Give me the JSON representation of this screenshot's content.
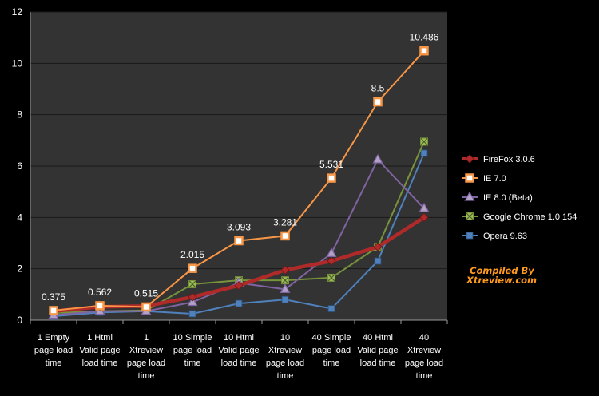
{
  "chart_data": {
    "type": "line",
    "categories": [
      [
        "1 Empty",
        "page load",
        "time"
      ],
      [
        "1 Html",
        "Valid page",
        "load time"
      ],
      [
        "1",
        "Xtreview",
        "page load",
        "time"
      ],
      [
        "10 Simple",
        "page load",
        "time"
      ],
      [
        "10 Html",
        "Valid page",
        "load time"
      ],
      [
        "10",
        "Xtreview",
        "page load",
        "time"
      ],
      [
        "40 Simple",
        "page load",
        "time"
      ],
      [
        "40 Html",
        "Valid page",
        "load time"
      ],
      [
        "40",
        "Xtreview",
        "page load",
        "time"
      ]
    ],
    "ylim": [
      0,
      12
    ],
    "yticks": [
      0,
      2,
      4,
      6,
      8,
      10,
      12
    ],
    "grid": true,
    "legend_position": "right",
    "series": [
      {
        "name": "FireFox 3.0.6",
        "color": "#b02a2a",
        "marker": "diamond",
        "values": [
          0.35,
          0.52,
          0.55,
          0.9,
          1.35,
          1.95,
          2.3,
          2.85,
          4.0
        ]
      },
      {
        "name": "IE 7.0",
        "color": "#f79646",
        "marker": "square-hollow",
        "values": [
          0.375,
          0.562,
          0.515,
          2.015,
          3.093,
          3.281,
          5.531,
          8.5,
          10.486
        ],
        "labels": [
          "0.375",
          "0.562",
          "0.515",
          "2.015",
          "3.093",
          "3.281",
          "5.531",
          "8.5",
          "10.486"
        ]
      },
      {
        "name": "IE 8.0 (Beta)",
        "color": "#8064a2",
        "marker": "triangle",
        "values": [
          0.2,
          0.35,
          0.35,
          0.7,
          1.45,
          1.2,
          2.6,
          6.25,
          4.35
        ]
      },
      {
        "name": "Google Chrome  1.0.154",
        "color": "#77933c",
        "marker": "x-square",
        "values": [
          0.28,
          0.35,
          0.38,
          1.4,
          1.55,
          1.55,
          1.65,
          2.85,
          6.95
        ]
      },
      {
        "name": "Opera 9.63",
        "color": "#4f81bd",
        "marker": "square",
        "values": [
          0.15,
          0.3,
          0.35,
          0.25,
          0.65,
          0.8,
          0.45,
          2.3,
          6.5
        ]
      }
    ]
  },
  "credit": {
    "line1": "Compiled By",
    "line2": "Xtreview.com"
  }
}
